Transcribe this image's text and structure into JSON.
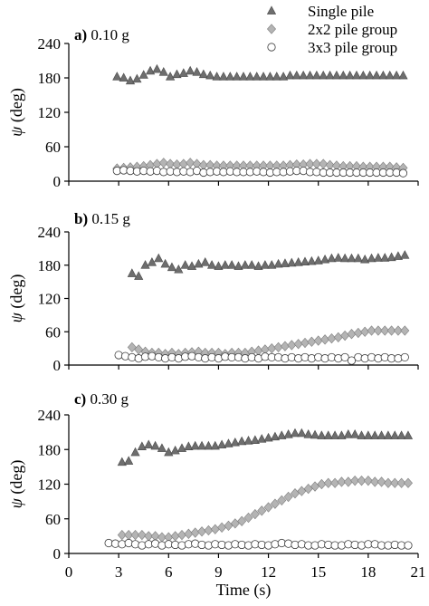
{
  "chart_data": [
    {
      "type": "scatter",
      "panel_letter": "a)",
      "panel_title": "0.10 g",
      "ylabel": "ψ (deg)",
      "xlim": [
        0,
        21
      ],
      "ylim": [
        0,
        240
      ],
      "yticks": [
        0,
        60,
        120,
        180,
        240
      ],
      "series": [
        {
          "name": "Single pile",
          "marker": "triangle",
          "color": "#6e6e6e",
          "x": [
            2.9,
            3.3,
            3.7,
            4.1,
            4.5,
            4.9,
            5.3,
            5.7,
            6.1,
            6.5,
            6.9,
            7.3,
            7.7,
            8.1,
            8.5,
            8.9,
            9.3,
            9.7,
            10.1,
            10.5,
            10.9,
            11.3,
            11.7,
            12.1,
            12.5,
            12.9,
            13.3,
            13.7,
            14.1,
            14.5,
            14.9,
            15.3,
            15.7,
            16.1,
            16.5,
            16.9,
            17.3,
            17.7,
            18.1,
            18.5,
            18.9,
            19.3,
            19.7,
            20.1
          ],
          "y": [
            182,
            180,
            175,
            178,
            185,
            192,
            195,
            190,
            182,
            186,
            188,
            192,
            190,
            186,
            184,
            182,
            182,
            182,
            182,
            182,
            182,
            182,
            182,
            182,
            182,
            182,
            184,
            184,
            184,
            184,
            184,
            184,
            184,
            184,
            184,
            184,
            184,
            184,
            184,
            184,
            184,
            184,
            184,
            184
          ]
        },
        {
          "name": "2x2 pile group",
          "marker": "diamond",
          "color": "#b4b4b4",
          "x": [
            2.9,
            3.3,
            3.7,
            4.1,
            4.5,
            4.9,
            5.3,
            5.7,
            6.1,
            6.5,
            6.9,
            7.3,
            7.7,
            8.1,
            8.5,
            8.9,
            9.3,
            9.7,
            10.1,
            10.5,
            10.9,
            11.3,
            11.7,
            12.1,
            12.5,
            12.9,
            13.3,
            13.7,
            14.1,
            14.5,
            14.9,
            15.3,
            15.7,
            16.1,
            16.5,
            16.9,
            17.3,
            17.7,
            18.1,
            18.5,
            18.9,
            19.3,
            19.7,
            20.1
          ],
          "y": [
            22,
            23,
            24,
            25,
            26,
            28,
            30,
            32,
            30,
            29,
            30,
            32,
            30,
            28,
            28,
            27,
            27,
            27,
            27,
            27,
            27,
            27,
            27,
            27,
            27,
            27,
            28,
            29,
            29,
            30,
            30,
            30,
            28,
            27,
            26,
            26,
            26,
            25,
            25,
            25,
            25,
            25,
            24,
            23
          ]
        },
        {
          "name": "3x3 pile group",
          "marker": "circle",
          "color": "#ffffff",
          "x": [
            2.9,
            3.3,
            3.7,
            4.1,
            4.5,
            4.9,
            5.3,
            5.7,
            6.1,
            6.5,
            6.9,
            7.3,
            7.7,
            8.1,
            8.5,
            8.9,
            9.3,
            9.7,
            10.1,
            10.5,
            10.9,
            11.3,
            11.7,
            12.1,
            12.5,
            12.9,
            13.3,
            13.7,
            14.1,
            14.5,
            14.9,
            15.3,
            15.7,
            16.1,
            16.5,
            16.9,
            17.3,
            17.7,
            18.1,
            18.5,
            18.9,
            19.3,
            19.7,
            20.1
          ],
          "y": [
            18,
            19,
            18,
            17,
            18,
            17,
            18,
            16,
            17,
            16,
            17,
            16,
            18,
            15,
            16,
            17,
            16,
            17,
            16,
            16,
            16,
            17,
            16,
            15,
            16,
            16,
            17,
            18,
            18,
            16,
            16,
            15,
            15,
            15,
            15,
            15,
            15,
            15,
            15,
            15,
            15,
            15,
            15,
            14
          ]
        }
      ]
    },
    {
      "type": "scatter",
      "panel_letter": "b)",
      "panel_title": "0.15 g",
      "ylabel": "ψ (deg)",
      "xlim": [
        0,
        21
      ],
      "ylim": [
        0,
        240
      ],
      "yticks": [
        0,
        60,
        120,
        180,
        240
      ],
      "series": [
        {
          "name": "Single pile",
          "marker": "triangle",
          "color": "#6e6e6e",
          "x": [
            3.8,
            4.2,
            4.6,
            5.0,
            5.4,
            5.8,
            6.2,
            6.6,
            7.0,
            7.4,
            7.8,
            8.2,
            8.6,
            9.0,
            9.4,
            9.8,
            10.2,
            10.6,
            11.0,
            11.4,
            11.8,
            12.2,
            12.6,
            13.0,
            13.4,
            13.8,
            14.2,
            14.6,
            15.0,
            15.4,
            15.8,
            16.2,
            16.6,
            17.0,
            17.4,
            17.8,
            18.2,
            18.6,
            19.0,
            19.4,
            19.8,
            20.2
          ],
          "y": [
            165,
            160,
            180,
            185,
            192,
            182,
            176,
            172,
            180,
            178,
            182,
            185,
            180,
            178,
            180,
            180,
            178,
            180,
            180,
            178,
            180,
            180,
            182,
            183,
            184,
            185,
            186,
            187,
            188,
            190,
            192,
            193,
            192,
            192,
            192,
            190,
            192,
            193,
            193,
            194,
            196,
            198
          ]
        },
        {
          "name": "2x2 pile group",
          "marker": "diamond",
          "color": "#b4b4b4",
          "x": [
            3.8,
            4.2,
            4.6,
            5.0,
            5.4,
            5.8,
            6.2,
            6.6,
            7.0,
            7.4,
            7.8,
            8.2,
            8.6,
            9.0,
            9.4,
            9.8,
            10.2,
            10.6,
            11.0,
            11.4,
            11.8,
            12.2,
            12.6,
            13.0,
            13.4,
            13.8,
            14.2,
            14.6,
            15.0,
            15.4,
            15.8,
            16.2,
            16.6,
            17.0,
            17.4,
            17.8,
            18.2,
            18.6,
            19.0,
            19.4,
            19.8,
            20.2
          ],
          "y": [
            32,
            28,
            24,
            22,
            22,
            20,
            22,
            20,
            22,
            23,
            24,
            22,
            22,
            22,
            20,
            22,
            22,
            22,
            24,
            26,
            28,
            30,
            32,
            34,
            36,
            38,
            40,
            42,
            44,
            46,
            48,
            50,
            53,
            56,
            58,
            60,
            62,
            62,
            62,
            62,
            62,
            62
          ]
        },
        {
          "name": "3x3 pile group",
          "marker": "circle",
          "color": "#ffffff",
          "x": [
            3.0,
            3.4,
            3.8,
            4.2,
            4.6,
            5.0,
            5.4,
            5.8,
            6.2,
            6.6,
            7.0,
            7.4,
            7.8,
            8.2,
            8.6,
            9.0,
            9.4,
            9.8,
            10.2,
            10.6,
            11.0,
            11.4,
            11.8,
            12.2,
            12.6,
            13.0,
            13.4,
            13.8,
            14.2,
            14.6,
            15.0,
            15.4,
            15.8,
            16.2,
            16.6,
            17.0,
            17.4,
            17.8,
            18.2,
            18.6,
            19.0,
            19.4,
            19.8,
            20.2
          ],
          "y": [
            18,
            16,
            14,
            12,
            15,
            16,
            14,
            12,
            14,
            12,
            15,
            16,
            14,
            12,
            14,
            12,
            15,
            14,
            14,
            12,
            14,
            12,
            15,
            14,
            14,
            12,
            14,
            12,
            14,
            12,
            14,
            12,
            14,
            12,
            14,
            8,
            14,
            12,
            14,
            12,
            14,
            12,
            12,
            14
          ]
        }
      ]
    },
    {
      "type": "scatter",
      "panel_letter": "c)",
      "panel_title": "0.30 g",
      "ylabel": "ψ (deg)",
      "xlabel": "Time (s)",
      "xlim": [
        0,
        21
      ],
      "xticks": [
        0,
        3,
        6,
        9,
        12,
        15,
        18,
        21
      ],
      "ylim": [
        0,
        240
      ],
      "yticks": [
        0,
        60,
        120,
        180,
        240
      ],
      "series": [
        {
          "name": "Single pile",
          "marker": "triangle",
          "color": "#6e6e6e",
          "x": [
            3.2,
            3.6,
            4.0,
            4.4,
            4.8,
            5.2,
            5.6,
            6.0,
            6.4,
            6.8,
            7.2,
            7.6,
            8.0,
            8.4,
            8.8,
            9.2,
            9.6,
            10.0,
            10.4,
            10.8,
            11.2,
            11.6,
            12.0,
            12.4,
            12.8,
            13.2,
            13.6,
            14.0,
            14.4,
            14.8,
            15.2,
            15.6,
            16.0,
            16.4,
            16.8,
            17.2,
            17.6,
            18.0,
            18.4,
            18.8,
            19.2,
            19.6,
            20.0,
            20.4
          ],
          "y": [
            158,
            160,
            175,
            185,
            188,
            186,
            182,
            175,
            178,
            182,
            185,
            186,
            186,
            186,
            186,
            188,
            190,
            192,
            194,
            195,
            196,
            198,
            200,
            202,
            204,
            206,
            208,
            208,
            206,
            205,
            204,
            204,
            204,
            204,
            206,
            206,
            204,
            204,
            204,
            204,
            204,
            204,
            204,
            204
          ]
        },
        {
          "name": "2x2 pile group",
          "marker": "diamond",
          "color": "#b4b4b4",
          "x": [
            3.2,
            3.6,
            4.0,
            4.4,
            4.8,
            5.2,
            5.6,
            6.0,
            6.4,
            6.8,
            7.2,
            7.6,
            8.0,
            8.4,
            8.8,
            9.2,
            9.6,
            10.0,
            10.4,
            10.8,
            11.2,
            11.6,
            12.0,
            12.4,
            12.8,
            13.2,
            13.6,
            14.0,
            14.4,
            14.8,
            15.2,
            15.6,
            16.0,
            16.4,
            16.8,
            17.2,
            17.6,
            18.0,
            18.4,
            18.8,
            19.2,
            19.6,
            20.0,
            20.4
          ],
          "y": [
            32,
            32,
            32,
            32,
            30,
            30,
            28,
            28,
            30,
            32,
            34,
            36,
            38,
            40,
            42,
            45,
            48,
            52,
            56,
            62,
            68,
            74,
            80,
            86,
            92,
            98,
            104,
            108,
            112,
            116,
            120,
            122,
            122,
            124,
            124,
            126,
            126,
            126,
            124,
            124,
            122,
            122,
            122,
            122
          ]
        },
        {
          "name": "3x3 pile group",
          "marker": "circle",
          "color": "#ffffff",
          "x": [
            2.4,
            2.8,
            3.2,
            3.6,
            4.0,
            4.4,
            4.8,
            5.2,
            5.6,
            6.0,
            6.4,
            6.8,
            7.2,
            7.6,
            8.0,
            8.4,
            8.8,
            9.2,
            9.6,
            10.0,
            10.4,
            10.8,
            11.2,
            11.6,
            12.0,
            12.4,
            12.8,
            13.2,
            13.6,
            14.0,
            14.4,
            14.8,
            15.2,
            15.6,
            16.0,
            16.4,
            16.8,
            17.2,
            17.6,
            18.0,
            18.4,
            18.8,
            19.2,
            19.6,
            20.0,
            20.4
          ],
          "y": [
            18,
            17,
            16,
            18,
            16,
            14,
            16,
            17,
            14,
            16,
            15,
            14,
            16,
            17,
            15,
            14,
            16,
            15,
            14,
            16,
            15,
            14,
            16,
            15,
            14,
            16,
            18,
            17,
            15,
            16,
            14,
            14,
            16,
            15,
            14,
            14,
            16,
            15,
            14,
            16,
            16,
            14,
            14,
            15,
            14,
            14
          ]
        }
      ]
    }
  ],
  "legend": [
    {
      "label": "Single pile",
      "marker": "triangle"
    },
    {
      "label": "2x2 pile group",
      "marker": "diamond"
    },
    {
      "label": "3x3 pile group",
      "marker": "circle"
    }
  ]
}
